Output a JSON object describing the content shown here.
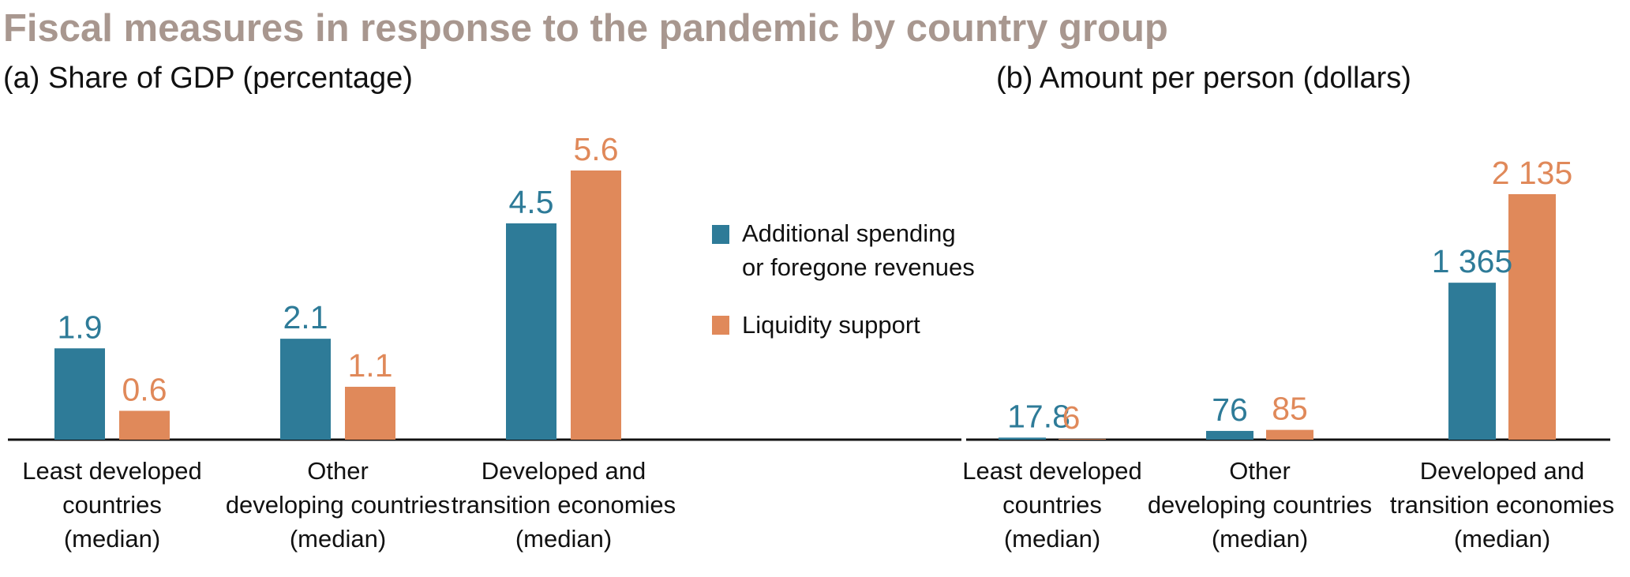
{
  "title": "Fiscal measures in response to the pandemic by country group",
  "colors": {
    "title": "#a8978f",
    "spending": "#2e7b98",
    "liquidity": "#e0895a",
    "axis": "#111111"
  },
  "legend": {
    "spending_line1": "Additional spending",
    "spending_line2": "or foregone revenues",
    "liquidity": "Liquidity support"
  },
  "chart_data": [
    {
      "type": "bar",
      "title": "(a) Share of GDP (percentage)",
      "categories": [
        [
          "Least developed",
          "countries",
          "(median)"
        ],
        [
          "Other",
          "developing countries",
          "(median)"
        ],
        [
          "Developed and",
          "transition economies",
          "(median)"
        ]
      ],
      "series": [
        {
          "name": "Additional spending or foregone revenues",
          "values": [
            1.9,
            2.1,
            4.5
          ],
          "labels": [
            "1.9",
            "2.1",
            "4.5"
          ]
        },
        {
          "name": "Liquidity support",
          "values": [
            0.6,
            1.1,
            5.6
          ],
          "labels": [
            "0.6",
            "1.1",
            "5.6"
          ]
        }
      ],
      "ylim": [
        0,
        5.6
      ]
    },
    {
      "type": "bar",
      "title": "(b) Amount per person (dollars)",
      "categories": [
        [
          "Least developed",
          "countries",
          "(median)"
        ],
        [
          "Other",
          "developing countries",
          "(median)"
        ],
        [
          "Developed and",
          "transition economies",
          "(median)"
        ]
      ],
      "series": [
        {
          "name": "Additional spending or foregone revenues",
          "values": [
            17.8,
            76,
            1365
          ],
          "labels": [
            "17.8",
            "76",
            "1 365"
          ]
        },
        {
          "name": "Liquidity support",
          "values": [
            6,
            85,
            2135
          ],
          "labels": [
            "6",
            "85",
            "2 135"
          ]
        }
      ],
      "ylim": [
        0,
        2135
      ]
    }
  ]
}
